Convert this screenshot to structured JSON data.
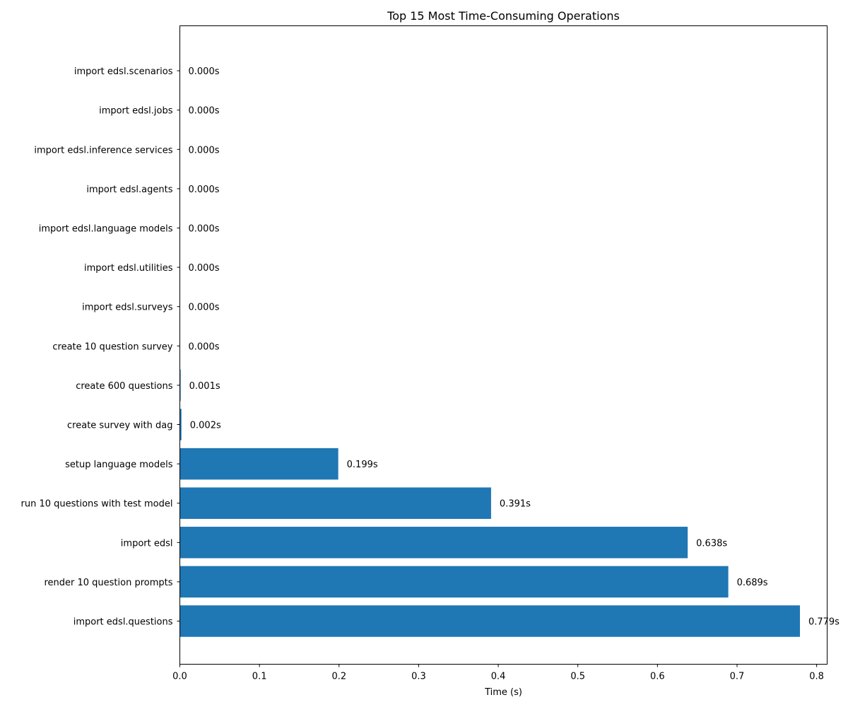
{
  "chart_data": {
    "type": "bar",
    "orientation": "horizontal",
    "title": "Top 15 Most Time-Consuming Operations",
    "xlabel": "Time (s)",
    "ylabel": "",
    "xlim": [
      0,
      0.8132
    ],
    "xticks": [
      0.0,
      0.1,
      0.2,
      0.3,
      0.4,
      0.5,
      0.6,
      0.7,
      0.8
    ],
    "xtick_labels": [
      "0.0",
      "0.1",
      "0.2",
      "0.3",
      "0.4",
      "0.5",
      "0.6",
      "0.7",
      "0.8"
    ],
    "grid": false,
    "bar_color": "#1f77b4",
    "categories": [
      "import edsl.scenarios",
      "import edsl.jobs",
      "import edsl.inference services",
      "import edsl.agents",
      "import edsl.language models",
      "import edsl.utilities",
      "import edsl.surveys",
      "create 10 question survey",
      "create 600 questions",
      "create survey with dag",
      "setup language models",
      "run 10 questions with test model",
      "import edsl",
      "render 10 question prompts",
      "import edsl.questions"
    ],
    "values": [
      0.0,
      0.0,
      0.0,
      0.0,
      0.0,
      0.0,
      0.0,
      0.0,
      0.001,
      0.002,
      0.199,
      0.391,
      0.638,
      0.689,
      0.779
    ],
    "value_labels": [
      "0.000s",
      "0.000s",
      "0.000s",
      "0.000s",
      "0.000s",
      "0.000s",
      "0.000s",
      "0.000s",
      "0.001s",
      "0.002s",
      "0.199s",
      "0.391s",
      "0.638s",
      "0.689s",
      "0.779s"
    ]
  }
}
